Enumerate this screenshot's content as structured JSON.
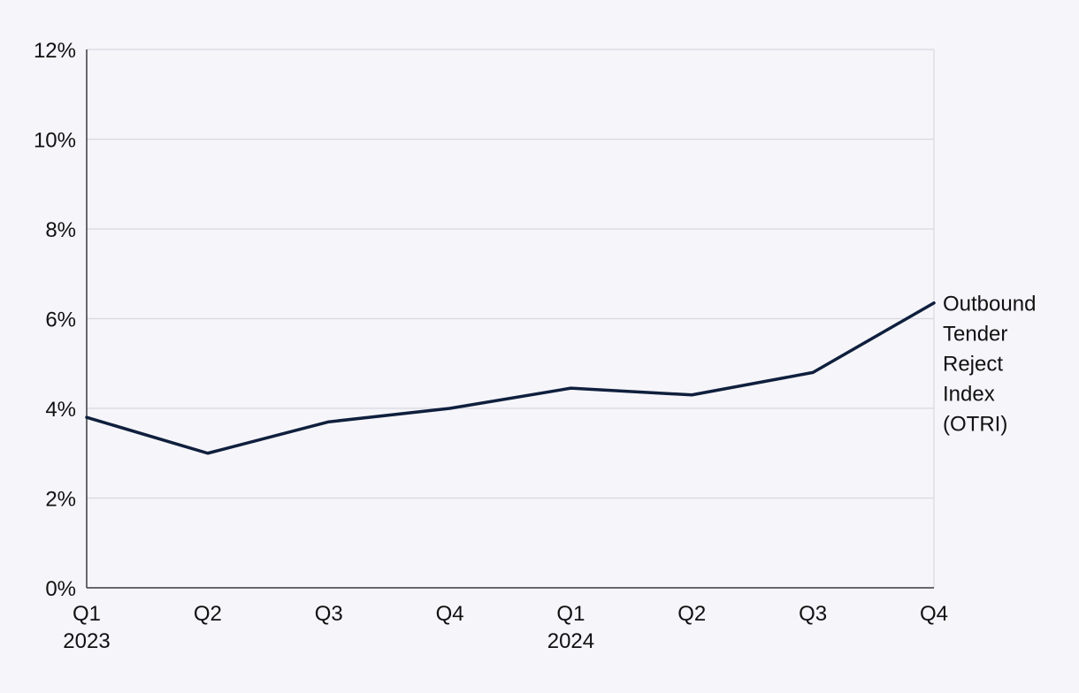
{
  "chart_data": {
    "type": "line",
    "categories": [
      "Q1 2023",
      "Q2",
      "Q3",
      "Q4",
      "Q1 2024",
      "Q2",
      "Q3",
      "Q4"
    ],
    "x_tick_labels": [
      {
        "line1": "Q1",
        "line2": "2023"
      },
      {
        "line1": "Q2",
        "line2": ""
      },
      {
        "line1": "Q3",
        "line2": ""
      },
      {
        "line1": "Q4",
        "line2": ""
      },
      {
        "line1": "Q1",
        "line2": "2024"
      },
      {
        "line1": "Q2",
        "line2": ""
      },
      {
        "line1": "Q3",
        "line2": ""
      },
      {
        "line1": "Q4",
        "line2": ""
      }
    ],
    "series": [
      {
        "name": "Outbound Tender Reject Index (OTRI)",
        "label_lines": [
          "Outbound",
          "Tender",
          "Reject",
          "Index",
          "(OTRI)"
        ],
        "values": [
          3.8,
          3.0,
          3.7,
          4.0,
          4.45,
          4.3,
          4.8,
          6.35
        ],
        "color": "#0f1f3d"
      }
    ],
    "ylim": [
      0,
      12
    ],
    "y_ticks": [
      0,
      2,
      4,
      6,
      8,
      10,
      12
    ],
    "y_tick_format": "%",
    "title": "",
    "xlabel": "",
    "ylabel": "",
    "grid": true,
    "legend": "end-of-line label"
  }
}
